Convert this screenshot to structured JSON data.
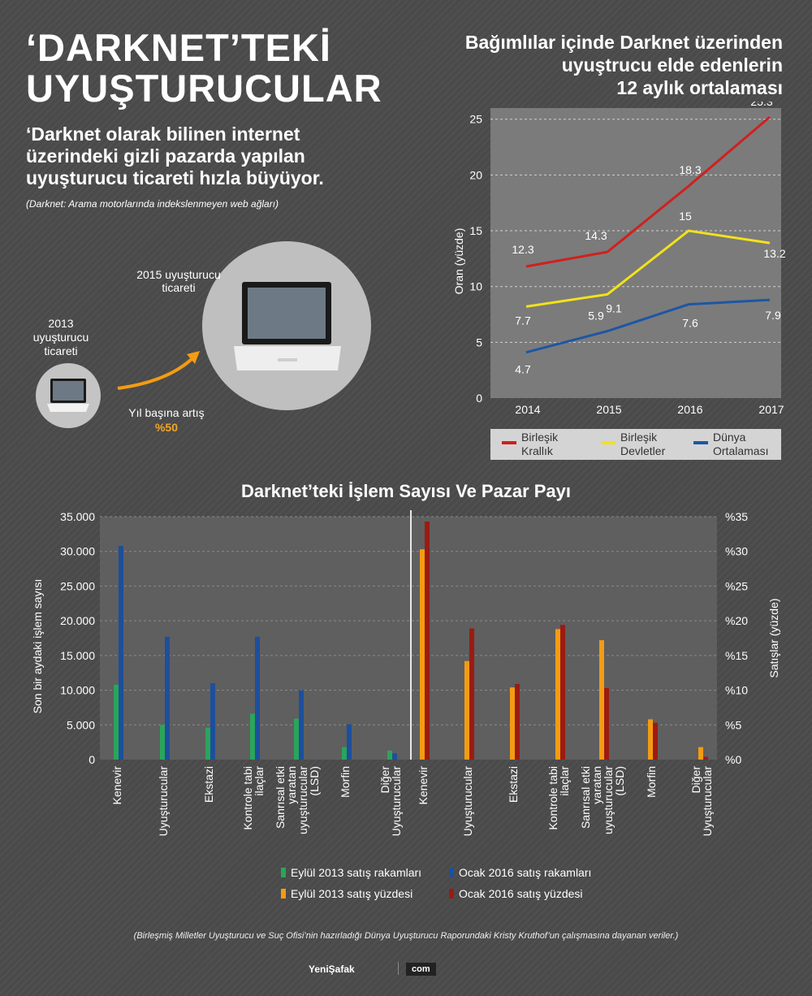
{
  "header": {
    "title_line1": "‘DARKNET’TEKİ",
    "title_line2": "UYUŞTURUCULAR",
    "subtitle": "‘Darknet olarak bilinen internet üzerindeki gizli pazarda  yapılan uyuşturucu ticareti hızla büyüyor.",
    "note": "(Darknet: Arama motorlarında indekslenmeyen web ağları)"
  },
  "growth_graphic": {
    "label_2013": "2013 uyuşturucu ticareti",
    "label_2015": "2015 uyuşturucu ticareti",
    "growth_label": "Yıl başına artış",
    "growth_value": "%50",
    "arrow_color": "#f39c12"
  },
  "chart_data": [
    {
      "type": "line",
      "title": "Bağımlılar içinde Darknet üzerinden uyuştrucu elde edenlerin 12 aylık ortalaması",
      "title_lines": [
        "Bağımlılar içinde Darknet üzerinden",
        "uyuştrucu elde edenlerin",
        "12 aylık ortalaması"
      ],
      "ylabel": "Oran (yüzde)",
      "ylim": [
        0,
        26
      ],
      "yticks": [
        0,
        5,
        10,
        15,
        20,
        25
      ],
      "x": [
        "2014",
        "2015",
        "2016",
        "2017"
      ],
      "grid": true,
      "series": [
        {
          "name": "Birleşik Krallık",
          "legend_lines": [
            "Birleşik",
            "Krallık"
          ],
          "color": "#d0201e",
          "values": [
            12.3,
            14.3,
            18.3,
            25.3
          ],
          "plot_values": [
            11.8,
            13.1,
            19.0,
            25.2
          ]
        },
        {
          "name": "Birleşik Devletler",
          "legend_lines": [
            "Birleşik",
            "Devletler"
          ],
          "color": "#f2e21a",
          "values": [
            7.7,
            9.1,
            15,
            13.2
          ],
          "plot_values": [
            8.2,
            9.3,
            15.0,
            13.9
          ]
        },
        {
          "name": "Dünya Ortalaması",
          "legend_lines": [
            "Dünya",
            "Ortalaması"
          ],
          "color": "#1d56a5",
          "values": [
            4.7,
            5.9,
            7.6,
            7.9
          ],
          "plot_values": [
            4.1,
            6.0,
            8.4,
            8.8
          ]
        }
      ],
      "data_labels": [
        [
          "12.3",
          "14.3",
          "18.3",
          "25.3"
        ],
        [
          "7.7",
          "9.1",
          "15",
          "13.2"
        ],
        [
          "4.7",
          "5.9",
          "7.6",
          "7.9"
        ]
      ]
    },
    {
      "type": "bar",
      "title": "Darknet’teki İşlem Sayısı Ve Pazar Payı",
      "panels": [
        {
          "ylabel": "Son bir aydaki işlem sayısı",
          "ylim": [
            0,
            35000
          ],
          "yticks": [
            "0",
            "5.000",
            "10.000",
            "15.000",
            "20.000",
            "25.000",
            "30.000",
            "35.000"
          ],
          "categories": [
            "Kenevir",
            "Uyuşturucular",
            "Ekstazi",
            "Kontrole tabi ilaçlar",
            "Sanrısal etki yaratan uyuşturucular (LSD)",
            "Morfin",
            "Diğer Uyuşturucular"
          ],
          "category_lines": [
            [
              "Kenevir"
            ],
            [
              "Uyuşturucular"
            ],
            [
              "Ekstazi"
            ],
            [
              "Kontrole tabi",
              "ilaçlar"
            ],
            [
              "Sanrısal etki",
              "yaratan",
              "uyuşturucular",
              "(LSD)"
            ],
            [
              "Morfin"
            ],
            [
              "Diğer",
              "Uyuşturucular"
            ]
          ],
          "series": [
            {
              "name": "Eylül 2013 satış rakamları",
              "color": "#2aa55a",
              "values": [
                10800,
                5000,
                4600,
                6600,
                5900,
                1800,
                1300
              ]
            },
            {
              "name": "Ocak 2016 satış rakamları",
              "color": "#1d4f9c",
              "values": [
                30800,
                17700,
                11000,
                17700,
                10000,
                5100,
                900
              ]
            }
          ]
        },
        {
          "ylabel": "Satışlar (yüzde)",
          "ylim": [
            0,
            35
          ],
          "yticks": [
            "%0",
            "%5",
            "%10",
            "%15",
            "%20",
            "%25",
            "%30",
            "%35"
          ],
          "categories": [
            "Kenevir",
            "Uyuşturucular",
            "Ekstazi",
            "Kontrole tabi ilaçlar",
            "Sanrısal etki yaratan uyuşturucular (LSD)",
            "Morfin",
            "Diğer Uyuşturucular"
          ],
          "category_lines": [
            [
              "Kenevir"
            ],
            [
              "Uyuşturucular"
            ],
            [
              "Ekstazi"
            ],
            [
              "Kontrole tabi",
              "ilaçlar"
            ],
            [
              "Sanrısal etki",
              "yaratan",
              "uyuşturucular",
              "(LSD)"
            ],
            [
              "Morfin"
            ],
            [
              "Diğer",
              "Uyuşturucular"
            ]
          ],
          "series": [
            {
              "name": "Eylül 2013 satış yüzdesi",
              "color": "#f39c12",
              "values": [
                30.3,
                14.2,
                10.4,
                18.8,
                17.2,
                5.8,
                1.8
              ]
            },
            {
              "name": "Ocak 2016 satış yüzdesi",
              "color": "#9b1b12",
              "values": [
                34.3,
                18.9,
                10.9,
                19.4,
                10.3,
                5.3,
                0.4
              ]
            }
          ]
        }
      ],
      "legend": [
        {
          "label": "Eylül 2013 satış rakamları",
          "color": "#2aa55a"
        },
        {
          "label": "Ocak 2016 satış rakamları",
          "color": "#1d4f9c"
        },
        {
          "label": "Eylül 2013 satış yüzdesi",
          "color": "#f39c12"
        },
        {
          "label": "Ocak 2016 satış yüzdesi",
          "color": "#9b1b12"
        }
      ]
    }
  ],
  "footer": {
    "source": "(Birleşmiş Milletler Uyuşturucu ve Suç Ofisi’nin hazırladığı Dünya Uyuşturucu Raporundaki Kristy Kruthof’un çalışmasına dayanan veriler.)",
    "logo": "YeniŞafak",
    "logo_suffix": "com"
  }
}
